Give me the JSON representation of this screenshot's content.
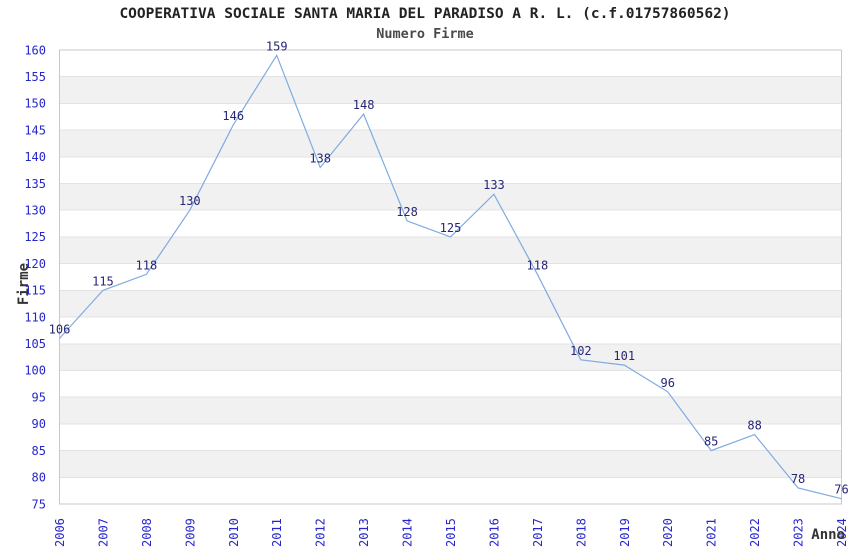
{
  "chart": {
    "title": "COOPERATIVA SOCIALE SANTA MARIA DEL PARADISO A R. L. (c.f.01757860562)",
    "subtitle": "Numero Firme",
    "ylabel": "Firme",
    "xlabel": "Anno"
  },
  "chart_data": {
    "type": "line",
    "title": "Numero Firme",
    "xlabel": "Anno",
    "ylabel": "Firme",
    "x": [
      2006,
      2007,
      2008,
      2009,
      2010,
      2011,
      2012,
      2013,
      2014,
      2015,
      2016,
      2017,
      2018,
      2019,
      2020,
      2021,
      2022,
      2023,
      2024
    ],
    "values": [
      106,
      115,
      118,
      130,
      146,
      159,
      138,
      148,
      128,
      125,
      133,
      118,
      102,
      101,
      96,
      85,
      88,
      78,
      76
    ],
    "ylim": [
      75,
      160
    ],
    "ytick_step": 5,
    "grid": "alternating-horizontal-bands",
    "legend": "none",
    "point_labels_visible": true,
    "colors": {
      "line": "#7fabe0",
      "tick_label": "#2626cc",
      "point_label": "#262677",
      "band": "#f1f1f1",
      "gridline": "#e3e3e3",
      "border": "#c8c8c8"
    }
  }
}
